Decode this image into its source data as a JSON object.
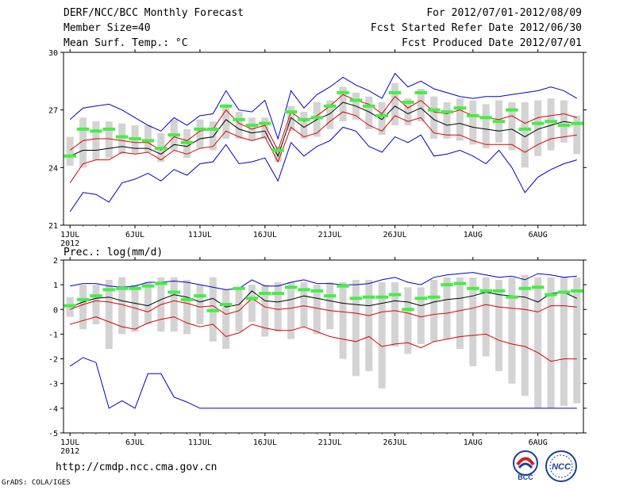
{
  "header": {
    "title": "DERF/NCC/BCC Monthly Forecast",
    "member_size": "Member Size=40",
    "variable": "Mean Surf. Temp.: °C",
    "forecast_period": "For 2012/07/01-2012/08/09",
    "started_refer": "Fcst Started Refer Date 2012/06/30",
    "produced": "Fcst Produced Date 2012/07/01"
  },
  "footer": {
    "url": "http://cmdp.ncc.cma.gov.cn",
    "grads": "GrADS: COLA/IGES",
    "logo_left_text": "BCC",
    "logo_right_text": "NCC"
  },
  "colors": {
    "ensemble_mean": "#000000",
    "envelope": "#0000cc",
    "spread": "#dd0000",
    "quartile_bar": "#d3d3d3",
    "median_mark": "#44ee44"
  },
  "chart_data": [
    {
      "type": "line",
      "title": "Mean Surf. Temp.: °C",
      "xlabel": "",
      "ylabel": "°C",
      "days": 40,
      "x_tick_days": [
        1,
        6,
        11,
        16,
        21,
        26,
        32,
        37
      ],
      "x_tick_labels": [
        "1JUL",
        "6JUL",
        "11JUL",
        "16JUL",
        "21JUL",
        "26JUL",
        "1AUG",
        "6AUG"
      ],
      "year_label": "2012",
      "ylim": [
        21,
        30
      ],
      "yticks": [
        21,
        24,
        27,
        30
      ],
      "series": [
        {
          "name": "ensemble mean",
          "role": "mean",
          "values": [
            24.6,
            24.9,
            24.9,
            25.0,
            25.1,
            25.0,
            25.0,
            24.7,
            25.2,
            25.1,
            25.5,
            25.6,
            26.5,
            26.0,
            25.8,
            25.9,
            24.6,
            26.6,
            26.1,
            26.5,
            26.8,
            27.4,
            27.2,
            26.9,
            26.5,
            27.2,
            26.8,
            27.1,
            26.5,
            26.2,
            26.3,
            26.1,
            26.0,
            25.9,
            26.0,
            25.6,
            26.0,
            26.2,
            26.4,
            26.3
          ]
        },
        {
          "name": "upper spread",
          "role": "spread",
          "values": [
            24.9,
            25.4,
            25.5,
            25.5,
            25.4,
            25.3,
            25.3,
            24.9,
            25.6,
            25.4,
            25.9,
            26.0,
            27.0,
            26.3,
            26.0,
            26.2,
            24.9,
            26.9,
            26.4,
            26.7,
            27.2,
            27.8,
            27.5,
            27.3,
            26.8,
            27.7,
            27.1,
            27.5,
            26.9,
            26.8,
            27.0,
            26.7,
            26.6,
            26.5,
            26.7,
            26.3,
            26.6,
            26.7,
            26.8,
            26.6
          ]
        },
        {
          "name": "lower spread",
          "role": "spread",
          "values": [
            23.2,
            24.2,
            24.4,
            24.4,
            24.8,
            24.7,
            24.8,
            24.4,
            24.9,
            24.7,
            25.0,
            25.1,
            25.9,
            25.6,
            25.4,
            25.6,
            24.3,
            26.1,
            25.6,
            25.8,
            26.4,
            26.9,
            26.7,
            26.2,
            25.9,
            26.7,
            26.4,
            26.6,
            25.8,
            25.7,
            25.7,
            25.4,
            25.2,
            25.2,
            25.2,
            24.8,
            25.2,
            25.5,
            25.6,
            25.7
          ]
        },
        {
          "name": "ensemble maximum",
          "role": "envelope",
          "values": [
            26.5,
            27.1,
            27.2,
            27.3,
            27.0,
            26.6,
            26.2,
            25.9,
            26.6,
            26.2,
            26.7,
            26.8,
            28.0,
            27.0,
            26.9,
            27.5,
            25.5,
            28.0,
            27.1,
            27.8,
            28.2,
            28.7,
            28.3,
            28.0,
            27.6,
            28.9,
            28.2,
            28.5,
            28.1,
            27.9,
            27.7,
            27.6,
            27.7,
            27.7,
            27.8,
            27.9,
            28.0,
            28.2,
            28.0,
            27.6
          ]
        },
        {
          "name": "ensemble minimum",
          "role": "envelope",
          "values": [
            21.7,
            22.7,
            22.6,
            22.2,
            23.2,
            23.4,
            23.7,
            23.3,
            23.9,
            23.6,
            24.2,
            24.3,
            25.2,
            24.2,
            24.3,
            24.5,
            23.3,
            25.3,
            24.6,
            25.1,
            25.4,
            26.1,
            25.9,
            25.1,
            24.8,
            25.6,
            25.3,
            25.7,
            24.6,
            24.7,
            24.9,
            24.6,
            24.2,
            24.9,
            24.0,
            22.7,
            23.5,
            23.9,
            24.2,
            24.4
          ]
        }
      ],
      "box_low": [
        24.1,
        24.0,
        24.4,
        24.5,
        24.7,
        24.7,
        24.8,
        24.3,
        24.9,
        24.5,
        25.0,
        24.9,
        25.5,
        25.5,
        25.4,
        25.5,
        24.3,
        25.9,
        25.5,
        25.6,
        26.0,
        26.4,
        26.5,
        26.0,
        25.7,
        26.2,
        26.2,
        26.4,
        25.5,
        25.5,
        25.4,
        25.2,
        25.0,
        25.3,
        24.9,
        24.0,
        24.6,
        24.9,
        25.3,
        24.7
      ],
      "box_high": [
        25.6,
        26.6,
        26.4,
        26.4,
        26.3,
        26.2,
        26.2,
        25.8,
        26.5,
        26.0,
        26.5,
        26.4,
        27.3,
        26.9,
        26.6,
        26.6,
        25.1,
        27.2,
        26.9,
        27.4,
        27.5,
        28.2,
        27.9,
        27.7,
        27.4,
        28.4,
        27.6,
        28.1,
        27.7,
        27.4,
        27.6,
        27.5,
        27.3,
        27.5,
        27.4,
        27.4,
        27.5,
        27.6,
        27.5,
        26.7
      ],
      "median": [
        24.6,
        26.0,
        25.9,
        26.0,
        25.6,
        25.5,
        25.4,
        25.0,
        25.7,
        25.3,
        26.0,
        26.0,
        27.2,
        26.5,
        26.2,
        26.3,
        24.9,
        26.9,
        26.5,
        26.6,
        27.2,
        27.9,
        27.5,
        27.2,
        26.7,
        27.9,
        27.4,
        27.9,
        27.0,
        26.9,
        27.1,
        26.7,
        26.6,
        26.4,
        27.0,
        26.0,
        26.3,
        26.4,
        26.2,
        26.3
      ]
    },
    {
      "type": "line",
      "title": "Prec.: log(mm/d)",
      "xlabel": "",
      "ylabel": "log(mm/d)",
      "days": 40,
      "x_tick_days": [
        1,
        6,
        11,
        16,
        21,
        26,
        32,
        37
      ],
      "x_tick_labels": [
        "1JUL",
        "6JUL",
        "11JUL",
        "16JUL",
        "21JUL",
        "26JUL",
        "1AUG",
        "6AUG"
      ],
      "year_label": "2012",
      "ylim": [
        -5,
        2
      ],
      "yticks": [
        -5,
        -4,
        -3,
        -2,
        -1,
        0,
        1,
        2
      ],
      "series": [
        {
          "name": "ensemble mean",
          "role": "mean",
          "values": [
            0.1,
            0.3,
            0.45,
            0.5,
            0.35,
            0.25,
            0.15,
            0.4,
            0.6,
            0.5,
            0.3,
            0.45,
            0.1,
            0.2,
            0.75,
            0.35,
            0.3,
            0.4,
            0.55,
            0.45,
            0.35,
            0.25,
            0.2,
            0.15,
            0.25,
            0.35,
            0.3,
            0.15,
            0.3,
            0.4,
            0.45,
            0.55,
            0.7,
            0.6,
            0.55,
            0.5,
            0.3,
            0.65,
            0.7,
            0.45
          ]
        },
        {
          "name": "upper spread",
          "role": "spread",
          "values": [
            0.0,
            0.2,
            0.35,
            0.3,
            0.2,
            0.05,
            -0.1,
            0.2,
            0.35,
            0.25,
            0.1,
            0.15,
            -0.2,
            -0.05,
            0.45,
            0.1,
            0.0,
            0.05,
            0.15,
            0.05,
            -0.05,
            -0.1,
            -0.15,
            -0.25,
            -0.1,
            -0.05,
            -0.15,
            -0.3,
            -0.2,
            -0.15,
            -0.05,
            0.05,
            0.2,
            0.1,
            0.05,
            0.0,
            -0.1,
            0.15,
            0.15,
            0.1
          ]
        },
        {
          "name": "lower spread",
          "role": "spread",
          "values": [
            -0.6,
            -0.45,
            -0.3,
            -0.5,
            -0.7,
            -0.8,
            -0.55,
            -0.4,
            -0.3,
            -0.55,
            -0.7,
            -0.6,
            -1.1,
            -0.95,
            -0.6,
            -0.75,
            -0.85,
            -0.85,
            -0.7,
            -0.9,
            -1.1,
            -1.2,
            -1.3,
            -1.1,
            -1.5,
            -1.4,
            -1.35,
            -1.55,
            -1.3,
            -1.2,
            -1.1,
            -1.05,
            -1.0,
            -1.25,
            -1.4,
            -1.5,
            -1.75,
            -2.1,
            -2.0,
            -2.0
          ]
        },
        {
          "name": "ensemble maximum",
          "role": "envelope",
          "values": [
            0.95,
            1.05,
            1.05,
            0.95,
            0.9,
            0.95,
            1.1,
            1.1,
            1.15,
            1.1,
            1.0,
            0.9,
            0.8,
            0.85,
            1.2,
            0.95,
            0.95,
            1.1,
            1.2,
            1.05,
            1.05,
            1.0,
            1.0,
            1.05,
            1.2,
            1.3,
            1.1,
            1.0,
            1.3,
            1.4,
            1.45,
            1.5,
            1.4,
            1.3,
            1.35,
            1.2,
            1.45,
            1.4,
            1.3,
            1.35
          ]
        },
        {
          "name": "ensemble minimum",
          "role": "envelope",
          "values": [
            -2.3,
            -1.95,
            -2.15,
            -4.0,
            -3.7,
            -4.0,
            -2.6,
            -2.6,
            -3.55,
            -3.75,
            -4.0,
            -4.0,
            -4.0,
            -4.0,
            -4.0,
            -4.0,
            -4.0,
            -4.0,
            -4.0,
            -4.0,
            -4.0,
            -4.0,
            -4.0,
            -4.0,
            -4.0,
            -4.0,
            -4.0,
            -4.0,
            -4.0,
            -4.0,
            -4.0,
            -4.0,
            -4.0,
            -4.0,
            -4.0,
            -4.0,
            -4.0,
            -4.0,
            -4.0,
            -4.0
          ]
        }
      ],
      "box_low": [
        -0.3,
        -0.8,
        -0.6,
        -1.6,
        -1.0,
        -0.9,
        -0.6,
        -0.9,
        -0.9,
        -1.0,
        -0.6,
        -1.3,
        -1.6,
        -0.9,
        -0.5,
        -1.1,
        -0.9,
        -1.2,
        -0.7,
        -1.0,
        -0.8,
        -2.0,
        -2.7,
        -2.5,
        -3.2,
        -1.5,
        -1.8,
        -1.4,
        -1.3,
        -1.2,
        -1.6,
        -2.3,
        -1.9,
        -2.5,
        -3.0,
        -3.5,
        -4.0,
        -4.0,
        -3.9,
        -3.8
      ],
      "box_high": [
        0.5,
        1.0,
        1.0,
        1.2,
        1.3,
        1.0,
        1.1,
        1.3,
        1.3,
        1.2,
        1.0,
        1.3,
        0.8,
        0.9,
        1.0,
        1.0,
        1.1,
        1.1,
        1.1,
        1.0,
        1.1,
        1.1,
        1.2,
        1.2,
        1.1,
        1.1,
        0.9,
        0.9,
        1.2,
        1.3,
        1.3,
        1.3,
        1.3,
        1.2,
        1.3,
        1.4,
        1.3,
        1.3,
        1.3,
        1.3
      ],
      "median": [
        0.15,
        0.4,
        0.55,
        0.8,
        0.85,
        0.85,
        0.95,
        1.05,
        0.7,
        0.4,
        0.55,
        -0.05,
        0.2,
        0.85,
        0.45,
        0.65,
        0.65,
        0.9,
        0.8,
        0.75,
        0.55,
        0.95,
        0.45,
        0.5,
        0.5,
        0.6,
        0.0,
        0.45,
        0.5,
        1.0,
        1.05,
        0.85,
        0.75,
        0.75,
        0.5,
        0.85,
        0.9,
        0.6,
        0.7,
        0.75
      ]
    }
  ]
}
